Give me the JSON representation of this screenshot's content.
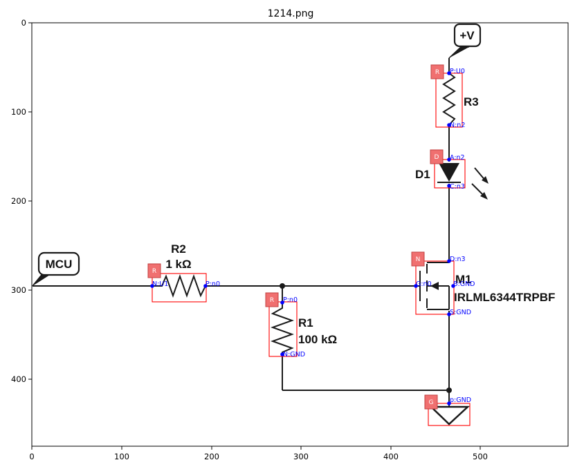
{
  "title": "1214.png",
  "axes": {
    "x_ticks": [
      "0",
      "100",
      "200",
      "300",
      "400",
      "500"
    ],
    "y_ticks": [
      "0",
      "100",
      "200",
      "300",
      "400"
    ]
  },
  "nets": {
    "mcu_label": "MCU",
    "vcc_label": "+V"
  },
  "components": {
    "r3": {
      "name": "R3",
      "badge": "R",
      "pin_top": "P:U0",
      "pin_bottom": "N:n2"
    },
    "d1": {
      "name": "D1",
      "badge": "D",
      "pin_top": "A:n2",
      "pin_bottom": "C:n3"
    },
    "m1": {
      "name": "M1",
      "part": "IRLML6344TRPBF",
      "badge": "N",
      "pin_drain": "D:n3",
      "pin_gate": "G:n0",
      "pin_body": "B:GND",
      "pin_source": "S:GND"
    },
    "r2": {
      "name": "R2",
      "value": "1 kΩ",
      "badge": "R",
      "pin_left": "N:U1",
      "pin_right": "P:n0"
    },
    "r1": {
      "name": "R1",
      "value": "100 kΩ",
      "badge": "R",
      "pin_top": "P:n0",
      "pin_bottom": "N:GND"
    },
    "gnd": {
      "badge": "G",
      "pin": "p:GND"
    }
  },
  "colors": {
    "wire": "#1a1a1a",
    "bbox": "#ff0000",
    "badge": "#f07070",
    "pin": "#0000ff"
  }
}
